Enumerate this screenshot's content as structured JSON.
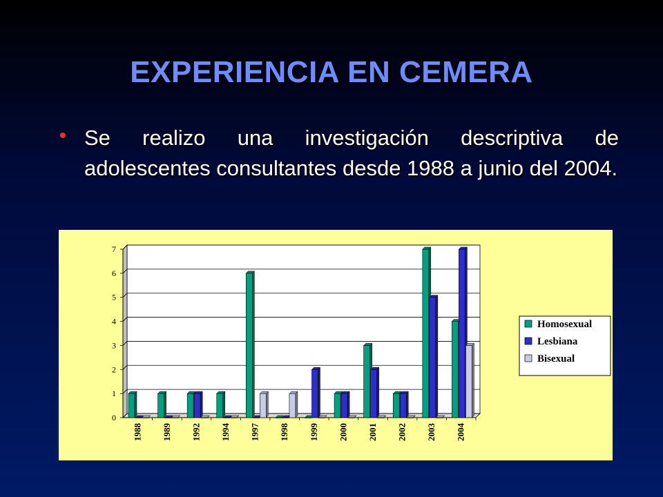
{
  "slide": {
    "title": "EXPERIENCIA EN CEMERA",
    "bullet": "Se realizo una investigación descriptiva de adolescentes consultantes desde 1988 a junio del 2004."
  },
  "colors": {
    "homosexual": "#00a080",
    "lesbiana": "#2e2ecc",
    "bisexual": "#c8cce8",
    "chart_bg": "#ffff99",
    "title": "#6f8cff",
    "bullet": "#ff2a2a"
  },
  "chart_data": {
    "type": "bar",
    "categories": [
      "1988",
      "1989",
      "1992",
      "1994",
      "1997",
      "1998",
      "1999",
      "2000",
      "2001",
      "2002",
      "2003",
      "2004"
    ],
    "series": [
      {
        "name": "Homosexual",
        "values": [
          1,
          1,
          1,
          1,
          6,
          0,
          0,
          1,
          3,
          1,
          7,
          4
        ]
      },
      {
        "name": "Lesbiana",
        "values": [
          0,
          0,
          1,
          0,
          0,
          0,
          2,
          1,
          2,
          1,
          5,
          7
        ]
      },
      {
        "name": "Bisexual",
        "values": [
          0,
          0,
          0,
          0,
          1,
          1,
          0,
          0,
          0,
          0,
          0,
          3
        ]
      }
    ],
    "yticks": [
      "0",
      "1",
      "2",
      "3",
      "4",
      "5",
      "6",
      "7"
    ],
    "ylim": [
      0,
      7
    ],
    "grid": true,
    "legend": "right"
  }
}
